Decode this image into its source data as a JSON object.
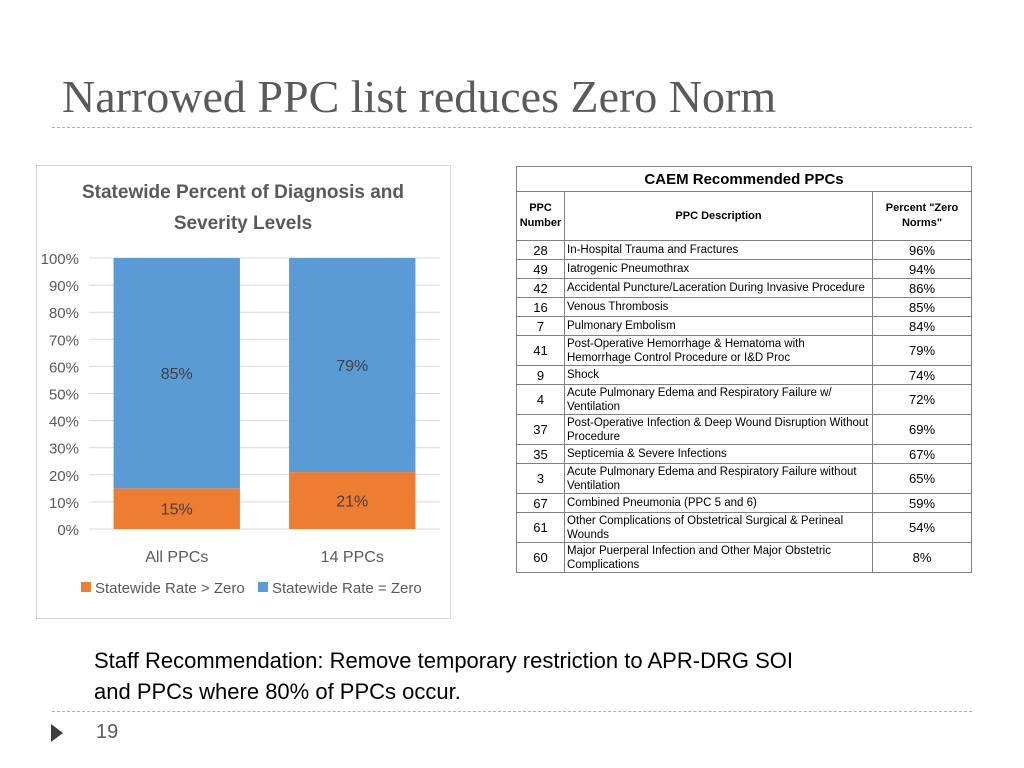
{
  "slide": {
    "title": "Narrowed PPC list reduces Zero Norm",
    "recommendation_line1": "Staff Recommendation: Remove temporary restriction to APR-DRG SOI",
    "recommendation_line2": "and PPCs where 80% of PPCs occur.",
    "page_number": "19",
    "page_marker_icon": "triangle-right-icon"
  },
  "chart_data": {
    "type": "bar",
    "stacked": true,
    "title_line1": "Statewide Percent of Diagnosis and",
    "title_line2": "Severity Levels",
    "categories": [
      "All PPCs",
      "14 PPCs"
    ],
    "series": [
      {
        "name": "Statewide Rate > Zero",
        "values": [
          15,
          21
        ],
        "labels": [
          "15%",
          "21%"
        ],
        "color": "#ed7d31"
      },
      {
        "name": "Statewide Rate = Zero",
        "values": [
          85,
          79
        ],
        "labels": [
          "85%",
          "79%"
        ],
        "color": "#5b9bd5"
      }
    ],
    "ylim": [
      0,
      100
    ],
    "yticks": [
      "0%",
      "10%",
      "20%",
      "30%",
      "40%",
      "50%",
      "60%",
      "70%",
      "80%",
      "90%",
      "100%"
    ],
    "grid": true,
    "legend_position": "bottom"
  },
  "table": {
    "caption": "CAEM Recommended PPCs",
    "headers": {
      "num_line1": "PPC",
      "num_line2": "Number",
      "desc": "PPC Description",
      "pct_line1": "Percent \"Zero",
      "pct_line2": "Norms\""
    },
    "rows": [
      {
        "num": "28",
        "desc": "In-Hospital Trauma and Fractures",
        "pct": "96%"
      },
      {
        "num": "49",
        "desc": "Iatrogenic Pneumothrax",
        "pct": "94%"
      },
      {
        "num": "42",
        "desc": "Accidental Puncture/Laceration During Invasive Procedure",
        "pct": "86%"
      },
      {
        "num": "16",
        "desc": "Venous Thrombosis",
        "pct": "85%"
      },
      {
        "num": "7",
        "desc": "Pulmonary Embolism",
        "pct": "84%"
      },
      {
        "num": "41",
        "desc_line1": "Post-Operative Hemorrhage & Hematoma with",
        "desc_line2": "Hemorrhage Control Procedure or I&D Proc",
        "pct": "79%"
      },
      {
        "num": "9",
        "desc": "Shock",
        "pct": "74%"
      },
      {
        "num": "4",
        "desc_line1": "Acute Pulmonary Edema and Respiratory Failure w/",
        "desc_line2": "Ventilation",
        "pct": "72%"
      },
      {
        "num": "37",
        "desc_line1": "Post-Operative Infection & Deep Wound Disruption Without",
        "desc_line2": "Procedure",
        "pct": "69%"
      },
      {
        "num": "35",
        "desc": "Septicemia & Severe Infections",
        "pct": "67%"
      },
      {
        "num": "3",
        "desc_line1": "Acute Pulmonary Edema and Respiratory Failure without",
        "desc_line2": "Ventilation",
        "pct": "65%"
      },
      {
        "num": "67",
        "desc": "Combined Pneumonia (PPC 5 and 6)",
        "pct": "59%"
      },
      {
        "num": "61",
        "desc_line1": "Other Complications of Obstetrical Surgical & Perineal",
        "desc_line2": "Wounds",
        "pct": "54%"
      },
      {
        "num": "60",
        "desc_line1": "Major Puerperal Infection and Other Major Obstetric",
        "desc_line2": "Complications",
        "pct": "8%"
      }
    ]
  }
}
